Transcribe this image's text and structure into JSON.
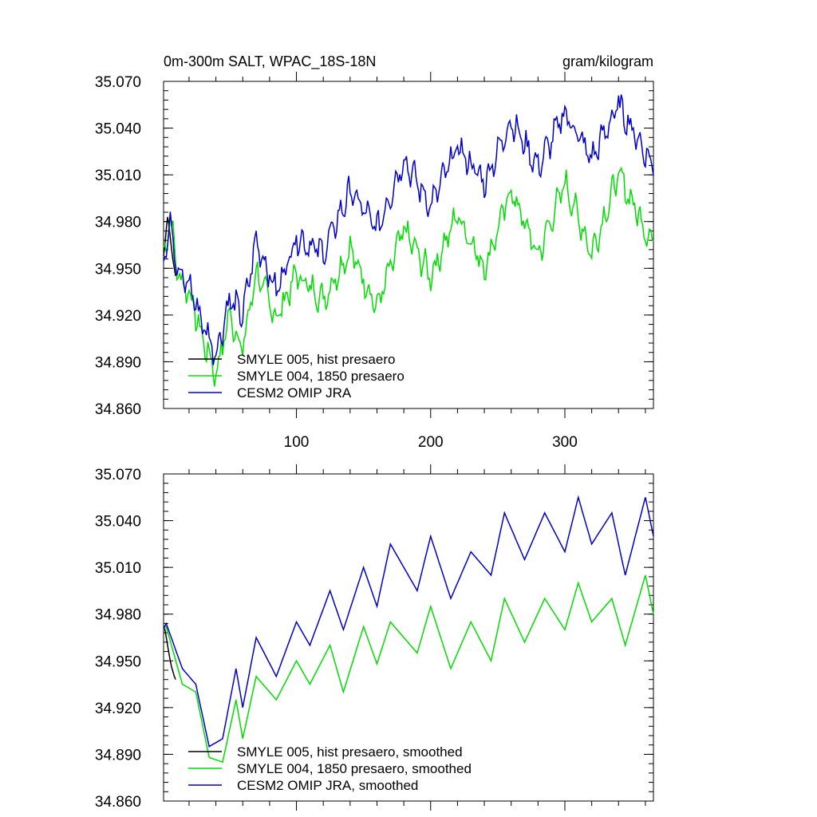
{
  "chart_data": [
    {
      "type": "line",
      "title": "0m-300m SALT, WPAC_18S-18N",
      "units": "gram/kilogram",
      "xlabel": "",
      "ylabel": "",
      "xlim": [
        1,
        366
      ],
      "ylim": [
        34.86,
        35.07
      ],
      "yticks": [
        "35.070",
        "35.040",
        "35.010",
        "34.980",
        "34.950",
        "34.920",
        "34.890",
        "34.860"
      ],
      "xticks": [
        "100",
        "200",
        "300"
      ],
      "legend_position": "bottom-left",
      "series": [
        {
          "name": "SMYLE 005, hist presaero",
          "color": "#000000",
          "x_range": [
            1,
            10
          ],
          "values": [
            34.958,
            34.965,
            34.975,
            34.983,
            34.978,
            34.97,
            34.962,
            34.955,
            34.95,
            34.945
          ]
        },
        {
          "name": "SMYLE 004, 1850 presaero",
          "color": "#00dd00",
          "x_range": [
            1,
            366
          ],
          "anchors": [
            [
              1,
              34.958
            ],
            [
              6,
              34.983
            ],
            [
              12,
              34.945
            ],
            [
              20,
              34.935
            ],
            [
              30,
              34.905
            ],
            [
              40,
              34.882
            ],
            [
              50,
              34.92
            ],
            [
              60,
              34.898
            ],
            [
              70,
              34.948
            ],
            [
              85,
              34.918
            ],
            [
              100,
              34.946
            ],
            [
              120,
              34.93
            ],
            [
              140,
              34.962
            ],
            [
              160,
              34.925
            ],
            [
              180,
              34.975
            ],
            [
              200,
              34.945
            ],
            [
              220,
              34.985
            ],
            [
              240,
              34.95
            ],
            [
              260,
              35.0
            ],
            [
              280,
              34.958
            ],
            [
              300,
              35.005
            ],
            [
              320,
              34.96
            ],
            [
              340,
              35.01
            ],
            [
              366,
              34.965
            ]
          ]
        },
        {
          "name": "CESM2 OMIP JRA",
          "color": "#0000cc",
          "x_range": [
            1,
            366
          ],
          "anchors": [
            [
              1,
              34.958
            ],
            [
              6,
              34.983
            ],
            [
              12,
              34.945
            ],
            [
              20,
              34.94
            ],
            [
              30,
              34.915
            ],
            [
              40,
              34.895
            ],
            [
              50,
              34.93
            ],
            [
              60,
              34.92
            ],
            [
              70,
              34.968
            ],
            [
              85,
              34.935
            ],
            [
              100,
              34.97
            ],
            [
              120,
              34.96
            ],
            [
              140,
              35.0
            ],
            [
              160,
              34.975
            ],
            [
              180,
              35.02
            ],
            [
              200,
              34.99
            ],
            [
              220,
              35.028
            ],
            [
              240,
              35.005
            ],
            [
              260,
              35.045
            ],
            [
              280,
              35.015
            ],
            [
              300,
              35.05
            ],
            [
              320,
              35.02
            ],
            [
              340,
              35.055
            ],
            [
              366,
              35.015
            ]
          ]
        }
      ]
    },
    {
      "type": "line",
      "title": "",
      "xlabel": "",
      "ylabel": "",
      "xlim": [
        1,
        366
      ],
      "ylim": [
        34.86,
        35.07
      ],
      "yticks": [
        "35.070",
        "35.040",
        "35.010",
        "34.980",
        "34.950",
        "34.920",
        "34.890",
        "34.860"
      ],
      "legend_position": "bottom-left",
      "series": [
        {
          "name": "SMYLE 005, hist presaero, smoothed",
          "color": "#000000",
          "x_range": [
            1,
            10
          ],
          "values": [
            34.972,
            34.97,
            34.965,
            34.96,
            34.955,
            34.95,
            34.946,
            34.943,
            34.94,
            34.938
          ]
        },
        {
          "name": "SMYLE 004, 1850 presaero, smoothed",
          "color": "#00dd00",
          "x_range": [
            1,
            366
          ],
          "anchors": [
            [
              1,
              34.971
            ],
            [
              3,
              34.972
            ],
            [
              15,
              34.935
            ],
            [
              25,
              34.93
            ],
            [
              35,
              34.888
            ],
            [
              45,
              34.885
            ],
            [
              55,
              34.925
            ],
            [
              60,
              34.9
            ],
            [
              70,
              34.94
            ],
            [
              85,
              34.925
            ],
            [
              100,
              34.95
            ],
            [
              110,
              34.935
            ],
            [
              125,
              34.96
            ],
            [
              135,
              34.93
            ],
            [
              150,
              34.972
            ],
            [
              160,
              34.948
            ],
            [
              170,
              34.975
            ],
            [
              190,
              34.955
            ],
            [
              200,
              34.985
            ],
            [
              215,
              34.945
            ],
            [
              230,
              34.975
            ],
            [
              245,
              34.95
            ],
            [
              255,
              34.99
            ],
            [
              270,
              34.962
            ],
            [
              285,
              34.99
            ],
            [
              300,
              34.97
            ],
            [
              310,
              35.0
            ],
            [
              320,
              34.975
            ],
            [
              335,
              34.99
            ],
            [
              345,
              34.96
            ],
            [
              360,
              35.005
            ],
            [
              366,
              34.98
            ]
          ]
        },
        {
          "name": "CESM2 OMIP JRA, smoothed",
          "color": "#0000cc",
          "x_range": [
            1,
            366
          ],
          "anchors": [
            [
              1,
              34.971
            ],
            [
              3,
              34.974
            ],
            [
              15,
              34.945
            ],
            [
              25,
              34.935
            ],
            [
              35,
              34.895
            ],
            [
              45,
              34.9
            ],
            [
              55,
              34.945
            ],
            [
              60,
              34.92
            ],
            [
              70,
              34.965
            ],
            [
              85,
              34.94
            ],
            [
              100,
              34.975
            ],
            [
              110,
              34.96
            ],
            [
              125,
              34.995
            ],
            [
              135,
              34.97
            ],
            [
              150,
              35.01
            ],
            [
              160,
              34.985
            ],
            [
              170,
              35.025
            ],
            [
              190,
              34.995
            ],
            [
              200,
              35.03
            ],
            [
              215,
              34.99
            ],
            [
              230,
              35.02
            ],
            [
              245,
              35.005
            ],
            [
              255,
              35.045
            ],
            [
              270,
              35.015
            ],
            [
              285,
              35.045
            ],
            [
              300,
              35.02
            ],
            [
              310,
              35.055
            ],
            [
              320,
              35.025
            ],
            [
              335,
              35.045
            ],
            [
              345,
              35.005
            ],
            [
              360,
              35.055
            ],
            [
              366,
              35.03
            ]
          ]
        }
      ]
    }
  ]
}
